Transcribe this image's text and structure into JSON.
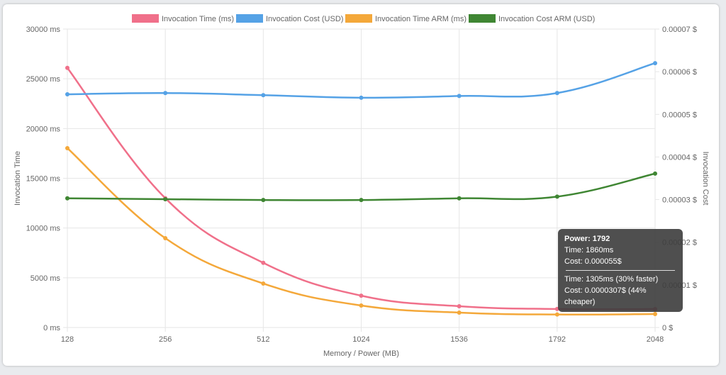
{
  "chart_data": {
    "type": "line",
    "xlabel": "Memory / Power (MB)",
    "ylabel_left": "Invocation Time",
    "ylabel_right": "Invocation Cost",
    "categories": [
      "128",
      "256",
      "512",
      "1024",
      "1536",
      "1792",
      "2048"
    ],
    "y_left": {
      "min": 0,
      "max": 30000,
      "ticks": [
        "0 ms",
        "5000 ms",
        "10000 ms",
        "15000 ms",
        "20000 ms",
        "25000 ms",
        "30000 ms"
      ]
    },
    "y_right": {
      "min": 0,
      "max": 7e-05,
      "ticks": [
        "0 $",
        "0.00001 $",
        "0.00002 $",
        "0.00003 $",
        "0.00004 $",
        "0.00005 $",
        "0.00006 $",
        "0.00007 $"
      ]
    },
    "grid": true,
    "legend": "top",
    "series": [
      {
        "name": "Invocation Time (ms)",
        "axis": "left",
        "color": "#f0708a",
        "values": [
          26100,
          13000,
          6500,
          3200,
          2140,
          1860,
          1850
        ]
      },
      {
        "name": "Invocation Cost (USD)",
        "axis": "right",
        "color": "#55a2e6",
        "values": [
          5.47e-05,
          5.5e-05,
          5.45e-05,
          5.39e-05,
          5.43e-05,
          5.5e-05,
          6.2e-05
        ]
      },
      {
        "name": "Invocation Time ARM (ms)",
        "axis": "left",
        "color": "#f4a83a",
        "values": [
          18030,
          8980,
          4420,
          2210,
          1500,
          1305,
          1350
        ]
      },
      {
        "name": "Invocation Cost ARM (USD)",
        "axis": "right",
        "color": "#3f8633",
        "values": [
          3.03e-05,
          3.01e-05,
          2.99e-05,
          2.99e-05,
          3.03e-05,
          3.07e-05,
          3.61e-05
        ]
      }
    ]
  },
  "tooltip": {
    "title": "Power: 1792",
    "time": "Time: 1860ms",
    "cost": "Cost: 0.000055$",
    "arm_time": "Time: 1305ms (30% faster)",
    "arm_cost": "Cost: 0.0000307$ (44% cheaper)"
  }
}
